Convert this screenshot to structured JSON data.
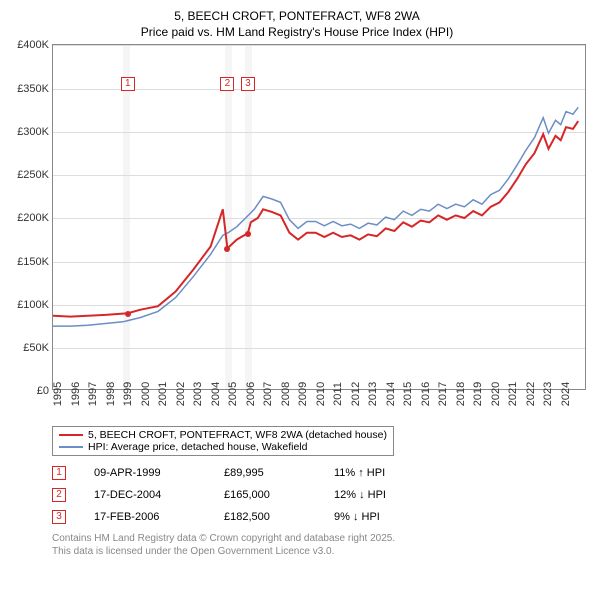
{
  "title_line1": "5, BEECH CROFT, PONTEFRACT, WF8 2WA",
  "title_line2": "Price paid vs. HM Land Registry's House Price Index (HPI)",
  "chart": {
    "type": "line",
    "xlim": [
      1995,
      2025.5
    ],
    "ylim": [
      0,
      400000
    ],
    "ytick_step": 50000,
    "yticks": [
      "£0",
      "£50K",
      "£100K",
      "£150K",
      "£200K",
      "£250K",
      "£300K",
      "£350K",
      "£400K"
    ],
    "xticks": [
      1995,
      1996,
      1997,
      1998,
      1999,
      2000,
      2001,
      2002,
      2003,
      2004,
      2005,
      2006,
      2007,
      2008,
      2009,
      2010,
      2011,
      2012,
      2013,
      2014,
      2015,
      2016,
      2017,
      2018,
      2019,
      2020,
      2021,
      2022,
      2023,
      2024
    ],
    "shade_ranges": [
      [
        1999.0,
        1999.4
      ],
      [
        2004.8,
        2005.2
      ],
      [
        2005.95,
        2006.35
      ]
    ],
    "background_color": "#ffffff",
    "grid_color": "#dddddd",
    "shade_color": "#f5f5f5",
    "label_fontsize": 11,
    "series_red": {
      "label": "5, BEECH CROFT, PONTEFRACT, WF8 2WA (detached house)",
      "color": "#d62728",
      "width": 2,
      "data": [
        [
          1995,
          87
        ],
        [
          1996,
          86
        ],
        [
          1997,
          87
        ],
        [
          1998,
          88
        ],
        [
          1999.27,
          89.995
        ],
        [
          2000,
          94
        ],
        [
          2001,
          98
        ],
        [
          2002,
          115
        ],
        [
          2003,
          140
        ],
        [
          2004,
          167
        ],
        [
          2004.7,
          210
        ],
        [
          2004.96,
          165
        ],
        [
          2005.5,
          175
        ],
        [
          2006.13,
          182.5
        ],
        [
          2006.3,
          195
        ],
        [
          2006.7,
          200
        ],
        [
          2007,
          210
        ],
        [
          2007.5,
          207
        ],
        [
          2008,
          203
        ],
        [
          2008.5,
          183
        ],
        [
          2009,
          175
        ],
        [
          2009.5,
          183
        ],
        [
          2010,
          183
        ],
        [
          2010.5,
          178
        ],
        [
          2011,
          183
        ],
        [
          2011.5,
          178
        ],
        [
          2012,
          180
        ],
        [
          2012.5,
          175
        ],
        [
          2013,
          181
        ],
        [
          2013.5,
          179
        ],
        [
          2014,
          188
        ],
        [
          2014.5,
          185
        ],
        [
          2015,
          195
        ],
        [
          2015.5,
          190
        ],
        [
          2016,
          197
        ],
        [
          2016.5,
          195
        ],
        [
          2017,
          203
        ],
        [
          2017.5,
          198
        ],
        [
          2018,
          203
        ],
        [
          2018.5,
          200
        ],
        [
          2019,
          208
        ],
        [
          2019.5,
          203
        ],
        [
          2020,
          213
        ],
        [
          2020.5,
          218
        ],
        [
          2021,
          230
        ],
        [
          2021.5,
          245
        ],
        [
          2022,
          262
        ],
        [
          2022.5,
          275
        ],
        [
          2023,
          297
        ],
        [
          2023.3,
          280
        ],
        [
          2023.7,
          295
        ],
        [
          2024,
          290
        ],
        [
          2024.3,
          305
        ],
        [
          2024.7,
          303
        ],
        [
          2025,
          312
        ]
      ]
    },
    "series_blue": {
      "label": "HPI: Average price, detached house, Wakefield",
      "color": "#6b8ec4",
      "width": 1.5,
      "data": [
        [
          1995,
          75
        ],
        [
          1996,
          75
        ],
        [
          1997,
          76
        ],
        [
          1998,
          78
        ],
        [
          1999,
          80
        ],
        [
          2000,
          85
        ],
        [
          2001,
          92
        ],
        [
          2002,
          108
        ],
        [
          2003,
          132
        ],
        [
          2004,
          158
        ],
        [
          2004.7,
          180
        ],
        [
          2005,
          183
        ],
        [
          2005.5,
          190
        ],
        [
          2006,
          200
        ],
        [
          2006.5,
          210
        ],
        [
          2007,
          225
        ],
        [
          2007.5,
          222
        ],
        [
          2008,
          218
        ],
        [
          2008.5,
          198
        ],
        [
          2009,
          188
        ],
        [
          2009.5,
          196
        ],
        [
          2010,
          196
        ],
        [
          2010.5,
          191
        ],
        [
          2011,
          196
        ],
        [
          2011.5,
          191
        ],
        [
          2012,
          193
        ],
        [
          2012.5,
          188
        ],
        [
          2013,
          194
        ],
        [
          2013.5,
          192
        ],
        [
          2014,
          201
        ],
        [
          2014.5,
          198
        ],
        [
          2015,
          208
        ],
        [
          2015.5,
          203
        ],
        [
          2016,
          210
        ],
        [
          2016.5,
          208
        ],
        [
          2017,
          216
        ],
        [
          2017.5,
          211
        ],
        [
          2018,
          216
        ],
        [
          2018.5,
          213
        ],
        [
          2019,
          221
        ],
        [
          2019.5,
          216
        ],
        [
          2020,
          227
        ],
        [
          2020.5,
          232
        ],
        [
          2021,
          245
        ],
        [
          2021.5,
          261
        ],
        [
          2022,
          278
        ],
        [
          2022.5,
          293
        ],
        [
          2023,
          316
        ],
        [
          2023.3,
          298
        ],
        [
          2023.7,
          313
        ],
        [
          2024,
          308
        ],
        [
          2024.3,
          323
        ],
        [
          2024.7,
          320
        ],
        [
          2025,
          328
        ]
      ]
    },
    "sale_points": [
      {
        "x": 1999.27,
        "y": 89.995
      },
      {
        "x": 2004.96,
        "y": 165
      },
      {
        "x": 2006.13,
        "y": 182.5
      }
    ],
    "markers": [
      {
        "num": "1",
        "x": 1999.27
      },
      {
        "num": "2",
        "x": 2004.96
      },
      {
        "num": "3",
        "x": 2006.13
      }
    ]
  },
  "legend": {
    "s1_label": "5, BEECH CROFT, PONTEFRACT, WF8 2WA (detached house)",
    "s2_label": "HPI: Average price, detached house, Wakefield"
  },
  "events": [
    {
      "num": "1",
      "date": "09-APR-1999",
      "price": "£89,995",
      "pct": "11%",
      "arrow": "↑",
      "suffix": "HPI"
    },
    {
      "num": "2",
      "date": "17-DEC-2004",
      "price": "£165,000",
      "pct": "12%",
      "arrow": "↓",
      "suffix": "HPI"
    },
    {
      "num": "3",
      "date": "17-FEB-2006",
      "price": "£182,500",
      "pct": "9%",
      "arrow": "↓",
      "suffix": "HPI"
    }
  ],
  "footer_line1": "Contains HM Land Registry data © Crown copyright and database right 2025.",
  "footer_line2": "This data is licensed under the Open Government Licence v3.0."
}
